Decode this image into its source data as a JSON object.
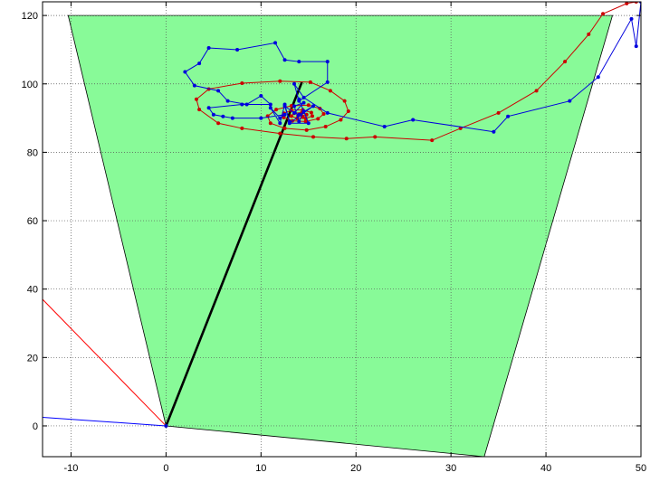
{
  "chart_data": {
    "type": "scatter",
    "xlim": [
      -13,
      50
    ],
    "ylim": [
      -9,
      124
    ],
    "xticks": [
      -10,
      0,
      10,
      20,
      30,
      40,
      50
    ],
    "yticks": [
      0,
      20,
      40,
      60,
      80,
      100,
      120
    ],
    "grid": true,
    "colors": {
      "region_fill": "#88fa98",
      "region_edge": "#000000",
      "red": "#cc0000",
      "blue": "#0000ee",
      "grid": "#555555"
    },
    "region": {
      "vertices": [
        [
          -10.3,
          120
        ],
        [
          47,
          120
        ],
        [
          33.5,
          -9
        ],
        [
          0,
          0
        ]
      ]
    },
    "lines": [
      {
        "color": "#ff0000",
        "points": [
          [
            -13,
            37
          ],
          [
            0,
            0
          ]
        ]
      },
      {
        "color": "#0000ff",
        "points": [
          [
            -13,
            2.5
          ],
          [
            0,
            0
          ]
        ]
      },
      {
        "color": "#000000",
        "points": [
          [
            0,
            0
          ],
          [
            14.3,
            100.5
          ]
        ]
      }
    ],
    "series": [
      {
        "color": "#cc0000",
        "points": [
          [
            49.5,
            124
          ],
          [
            48.5,
            123.5
          ],
          [
            46,
            120.5
          ],
          [
            44.5,
            114.5
          ],
          [
            42,
            106.5
          ],
          [
            39,
            98
          ],
          [
            35,
            91.5
          ],
          [
            31,
            87
          ],
          [
            28,
            83.5
          ],
          [
            22,
            84.5
          ],
          [
            19,
            84
          ],
          [
            15.5,
            84.5
          ],
          [
            12,
            85.5
          ],
          [
            8,
            87
          ],
          [
            5.5,
            88.5
          ],
          [
            3.5,
            92.5
          ],
          [
            3.2,
            95.5
          ],
          [
            4.5,
            98.5
          ],
          [
            8,
            100.2
          ],
          [
            12,
            100.8
          ],
          [
            15.2,
            100.5
          ],
          [
            17.3,
            98
          ],
          [
            18.8,
            95
          ],
          [
            19.2,
            92
          ],
          [
            18.4,
            89.5
          ],
          [
            16.8,
            87.5
          ],
          [
            14.8,
            86.5
          ],
          [
            12.5,
            87
          ],
          [
            11,
            88.5
          ],
          [
            10.7,
            90.6
          ],
          [
            11.6,
            92.5
          ],
          [
            13.2,
            93.6
          ],
          [
            15,
            93.8
          ],
          [
            16.2,
            92.8
          ],
          [
            16.6,
            91.2
          ],
          [
            16,
            89.8
          ],
          [
            14.7,
            89
          ],
          [
            13.3,
            89.2
          ],
          [
            12.4,
            90.2
          ],
          [
            12.4,
            91.4
          ],
          [
            13.2,
            92.3
          ],
          [
            14.4,
            92.4
          ],
          [
            15.3,
            91.6
          ],
          [
            15.4,
            90.6
          ],
          [
            14.7,
            89.9
          ],
          [
            13.8,
            89.9
          ],
          [
            13.2,
            90.6
          ],
          [
            13.5,
            91.4
          ],
          [
            14.3,
            91.6
          ],
          [
            14.8,
            91
          ],
          [
            14.4,
            90.5
          ],
          [
            13.9,
            90.7
          ],
          [
            14.1,
            91.1
          ]
        ]
      },
      {
        "color": "#0000dd",
        "points": [
          [
            50,
            124
          ],
          [
            49.5,
            111
          ],
          [
            49,
            119
          ],
          [
            45.5,
            102
          ],
          [
            42.5,
            95
          ],
          [
            36,
            90.5
          ],
          [
            34.5,
            86
          ],
          [
            26,
            89.5
          ],
          [
            23,
            87.5
          ],
          [
            17,
            91.5
          ],
          [
            14.5,
            96
          ],
          [
            13.5,
            100
          ],
          [
            14,
            95
          ],
          [
            17,
            100.5
          ],
          [
            17,
            106.5
          ],
          [
            14,
            106.5
          ],
          [
            12.5,
            107
          ],
          [
            11.5,
            112
          ],
          [
            7.5,
            110
          ],
          [
            4.5,
            110.5
          ],
          [
            3.5,
            106
          ],
          [
            2,
            103.5
          ],
          [
            3,
            99.5
          ],
          [
            5.5,
            98
          ],
          [
            6.5,
            95
          ],
          [
            8.5,
            94
          ],
          [
            10,
            96.5
          ],
          [
            11,
            94
          ],
          [
            8,
            94
          ],
          [
            4.5,
            93
          ],
          [
            5,
            91
          ],
          [
            6,
            90.5
          ],
          [
            7,
            90
          ],
          [
            10,
            90
          ],
          [
            12.5,
            91
          ],
          [
            12,
            90
          ],
          [
            11,
            93
          ],
          [
            12,
            88.5
          ],
          [
            12.5,
            94
          ],
          [
            13,
            89
          ],
          [
            12.5,
            93.5
          ],
          [
            13.5,
            91.5
          ],
          [
            14.5,
            94.5
          ],
          [
            13.5,
            93.5
          ],
          [
            14,
            89
          ],
          [
            14.5,
            92
          ],
          [
            14,
            95.5
          ],
          [
            15,
            88.5
          ],
          [
            13,
            88.5
          ],
          [
            15.5,
            93.5
          ],
          [
            14,
            91
          ]
        ]
      }
    ]
  }
}
